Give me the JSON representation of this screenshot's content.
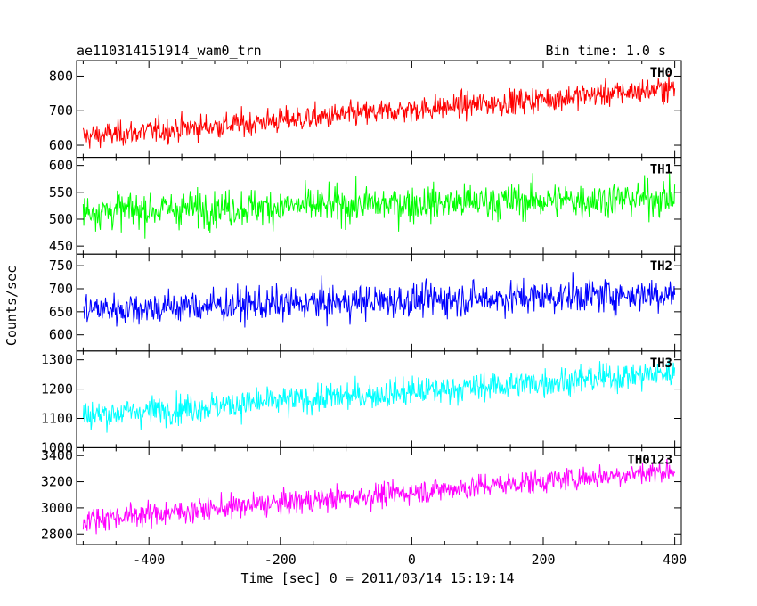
{
  "header": {
    "left": "ae110314151914_wam0_trn",
    "right": "Bin time: 1.0 s"
  },
  "chart_data": {
    "type": "line",
    "xlabel": "Time [sec] 0 = 2011/03/14 15:19:14",
    "ylabel": "Counts/sec",
    "xlim": [
      -510,
      410
    ],
    "xticks": [
      -400,
      -200,
      0,
      200,
      400
    ],
    "bin_time_s": 1.0,
    "x_range": [
      -500,
      400
    ],
    "panels": [
      {
        "label": "TH0",
        "color": "#ff0000",
        "ylim": [
          565,
          845
        ],
        "yticks": [
          600,
          700,
          800
        ],
        "trend_start": 625,
        "trend_end": 765,
        "noise": 26
      },
      {
        "label": "TH1",
        "color": "#00ff00",
        "ylim": [
          435,
          615
        ],
        "yticks": [
          450,
          500,
          550,
          600
        ],
        "trend_start": 515,
        "trend_end": 540,
        "noise": 24
      },
      {
        "label": "TH2",
        "color": "#0000ff",
        "ylim": [
          565,
          775
        ],
        "yticks": [
          600,
          650,
          700,
          750
        ],
        "trend_start": 655,
        "trend_end": 690,
        "noise": 26
      },
      {
        "label": "TH3",
        "color": "#00ffff",
        "ylim": [
          1000,
          1330
        ],
        "yticks": [
          1000,
          1100,
          1200,
          1300
        ],
        "trend_start": 1110,
        "trend_end": 1255,
        "noise": 35
      },
      {
        "label": "TH0123",
        "color": "#ff00ff",
        "ylim": [
          2720,
          3460
        ],
        "yticks": [
          2800,
          3000,
          3200,
          3400
        ],
        "trend_start": 2910,
        "trend_end": 3290,
        "noise": 65
      }
    ]
  }
}
